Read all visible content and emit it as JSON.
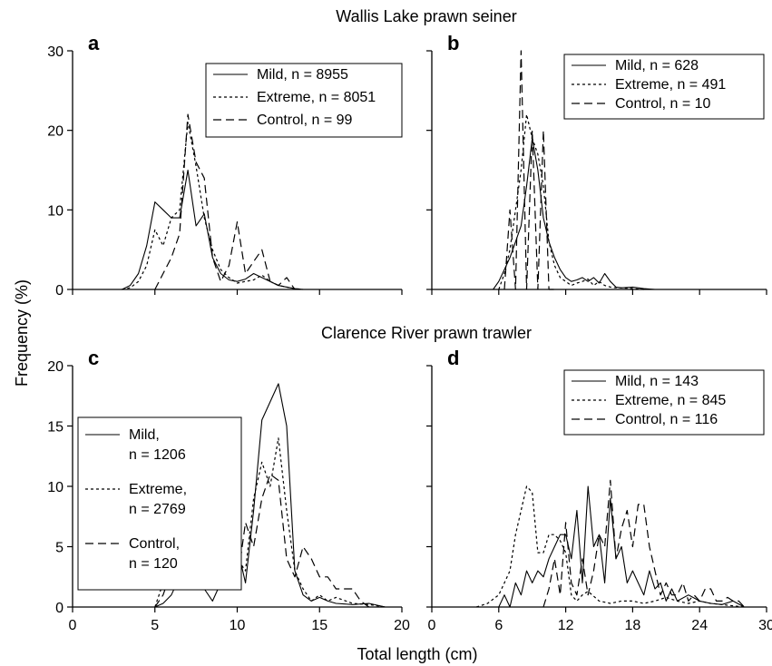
{
  "figure": {
    "row_titles": [
      "Wallis Lake prawn seiner",
      "Clarence River prawn trawler"
    ],
    "ylabel": "Frequency (%)",
    "xlabel": "Total length (cm)"
  },
  "chart_data": [
    {
      "type": "line",
      "panel": "a",
      "xlim": [
        0,
        20
      ],
      "ylim": [
        0,
        30
      ],
      "x_ticks": [],
      "y_ticks": [
        0,
        10,
        20,
        30
      ],
      "legend": {
        "position": "top-right",
        "entries": [
          "Mild, n = 8955",
          "Extreme, n = 8051",
          "Control, n = 99"
        ]
      },
      "series": [
        {
          "name": "Mild, n = 8955",
          "style": "solid",
          "x": [
            3,
            3.5,
            4,
            4.5,
            5,
            5.5,
            6,
            6.5,
            7,
            7.5,
            8,
            8.5,
            9,
            9.5,
            10,
            10.5,
            11,
            11.5,
            12,
            12.5,
            13,
            13.5,
            14
          ],
          "y": [
            0,
            0.5,
            2,
            5.5,
            11,
            10,
            9,
            9,
            15,
            8,
            9.5,
            4,
            2,
            1.2,
            1,
            1.3,
            2,
            1.5,
            1,
            0.5,
            0.3,
            0.1,
            0
          ]
        },
        {
          "name": "Extreme, n = 8051",
          "style": "dotted",
          "x": [
            3,
            3.5,
            4,
            4.5,
            5,
            5.5,
            6,
            6.5,
            7,
            7.5,
            8,
            8.5,
            9,
            9.5,
            10,
            10.5,
            11,
            11.5,
            12,
            12.5,
            13,
            13.5,
            14
          ],
          "y": [
            0,
            0.2,
            1,
            3,
            7.5,
            5.5,
            9,
            10,
            21,
            15.5,
            9,
            5,
            2.5,
            1.5,
            0.8,
            1,
            1.2,
            1.8,
            1,
            0.5,
            0.3,
            0.1,
            0
          ]
        },
        {
          "name": "Control, n = 99",
          "style": "dashed",
          "x": [
            5,
            5.5,
            6,
            6.5,
            7,
            7.5,
            8,
            8.5,
            9,
            9.5,
            10,
            10.5,
            11,
            11.5,
            12,
            12.5,
            13,
            13.5
          ],
          "y": [
            0,
            2,
            4,
            7,
            22,
            16,
            14,
            4,
            1,
            3,
            8.5,
            2,
            3.5,
            5,
            1,
            0.5,
            1.5,
            0
          ]
        }
      ]
    },
    {
      "type": "line",
      "panel": "b",
      "xlim": [
        0,
        30
      ],
      "ylim": [
        0,
        30
      ],
      "x_ticks": [],
      "y_ticks": [],
      "legend": {
        "position": "top-right",
        "entries": [
          "Mild, n = 628",
          "Extreme, n = 491",
          "Control, n = 10"
        ]
      },
      "series": [
        {
          "name": "Mild, n = 628",
          "style": "solid",
          "x": [
            5.5,
            6,
            6.5,
            7,
            7.5,
            8,
            8.5,
            9,
            9.5,
            10,
            10.5,
            11,
            11.5,
            12,
            12.5,
            13,
            13.5,
            14,
            14.5,
            15,
            15.5,
            16,
            16.5,
            17,
            18,
            19,
            20
          ],
          "y": [
            0,
            1,
            2.5,
            4,
            6,
            8,
            13,
            19,
            15,
            9,
            6,
            4,
            2.5,
            1.5,
            1,
            1.2,
            1.5,
            1,
            1.5,
            0.8,
            2,
            1,
            0.3,
            0.2,
            0.3,
            0.1,
            0
          ]
        },
        {
          "name": "Extreme, n = 491",
          "style": "dotted",
          "x": [
            6,
            6.5,
            7,
            7.5,
            8,
            8.5,
            9,
            9.5,
            10,
            10.5,
            11,
            11.5,
            12,
            12.5,
            13,
            13.5,
            14,
            14.5,
            15,
            15.5,
            16,
            16.5,
            17,
            18,
            19
          ],
          "y": [
            0,
            2,
            5,
            10,
            15,
            22,
            19,
            17,
            13,
            6,
            3,
            1.5,
            1,
            0.5,
            0.8,
            1,
            1.3,
            0.5,
            1,
            0.5,
            0.3,
            0.2,
            0.2,
            0.1,
            0
          ]
        },
        {
          "name": "Control, n = 10",
          "style": "dashed",
          "x": [
            6.5,
            7,
            7.5,
            8,
            8.5,
            9,
            9.5,
            10,
            10.5,
            11
          ],
          "y": [
            0,
            10,
            0,
            30,
            0,
            20,
            0,
            20,
            0,
            0
          ]
        }
      ]
    },
    {
      "type": "line",
      "panel": "c",
      "xlim": [
        0,
        20
      ],
      "ylim": [
        0,
        20
      ],
      "x_ticks": [
        0,
        5,
        10,
        15,
        20
      ],
      "y_ticks": [
        0,
        5,
        10,
        15,
        20
      ],
      "legend": {
        "position": "middle-left",
        "entries": [
          [
            "Mild,",
            "n = 1206"
          ],
          [
            "Extreme,",
            "n = 2769"
          ],
          [
            "Control,",
            "n = 120"
          ]
        ]
      },
      "series": [
        {
          "name": "Mild, n = 1206",
          "style": "solid",
          "x": [
            5,
            5.5,
            6,
            6.5,
            7,
            7.5,
            8,
            8.5,
            9,
            9.5,
            10,
            10.5,
            11,
            11.5,
            12,
            12.5,
            13,
            13.5,
            14,
            14.5,
            15,
            15.5,
            16,
            17,
            18,
            19
          ],
          "y": [
            0,
            0.3,
            1,
            2.5,
            1.5,
            3,
            1.5,
            0.5,
            2,
            2,
            5,
            2,
            8,
            15.5,
            17,
            18.5,
            15,
            3,
            1,
            0.5,
            0.8,
            0.5,
            0.3,
            0.2,
            0.3,
            0
          ]
        },
        {
          "name": "Extreme, n = 2769",
          "style": "dotted",
          "x": [
            5,
            5.5,
            6,
            6.5,
            7,
            7.5,
            8,
            8.5,
            9,
            9.5,
            10,
            10.5,
            11,
            11.5,
            12,
            12.5,
            13,
            13.5,
            14,
            14.5,
            15,
            15.5,
            16,
            17,
            18,
            19
          ],
          "y": [
            0,
            2,
            6,
            5.5,
            7,
            6,
            4,
            2,
            3,
            2.5,
            4,
            3,
            9,
            12,
            10,
            14,
            8,
            3,
            1.5,
            0.5,
            1,
            0.5,
            0.8,
            0.3,
            0.2,
            0
          ]
        },
        {
          "name": "Control, n = 120",
          "style": "dashed",
          "x": [
            5,
            5.5,
            6,
            6.5,
            7,
            7.5,
            8,
            8.5,
            9,
            9.5,
            10,
            10.5,
            11,
            11.5,
            12,
            12.5,
            13,
            13.5,
            14,
            14.5,
            15,
            15.5,
            16,
            16.5,
            17,
            17.5,
            18
          ],
          "y": [
            0,
            1,
            3,
            2,
            4,
            3,
            5,
            2.5,
            2.5,
            4,
            2,
            7,
            5,
            9,
            11,
            10.5,
            4,
            2.5,
            5,
            4,
            2.5,
            2.5,
            1.5,
            1.5,
            1.5,
            0.5,
            0
          ]
        }
      ]
    },
    {
      "type": "line",
      "panel": "d",
      "xlim": [
        0,
        30
      ],
      "ylim": [
        0,
        20
      ],
      "x_ticks": [
        0,
        6,
        12,
        18,
        24,
        30
      ],
      "y_ticks": [],
      "legend": {
        "position": "top-right",
        "entries": [
          "Mild, n = 143",
          "Extreme, n = 845",
          "Control, n = 116"
        ]
      },
      "series": [
        {
          "name": "Mild, n = 143",
          "style": "solid",
          "x": [
            6,
            6.5,
            7,
            7.5,
            8,
            8.5,
            9,
            9.5,
            10,
            10.5,
            11,
            11.5,
            12,
            12.5,
            13,
            13.5,
            14,
            14.5,
            15,
            15.5,
            16,
            16.5,
            17,
            17.5,
            18,
            18.5,
            19,
            19.5,
            20,
            20.5,
            21,
            21.5,
            22,
            23,
            24,
            25,
            26,
            27,
            28
          ],
          "y": [
            0,
            1,
            0,
            2,
            1,
            3,
            2,
            3,
            2.5,
            4,
            5,
            6,
            6,
            4,
            8,
            2,
            10,
            5,
            6,
            2,
            9,
            4,
            5,
            2,
            3,
            2,
            1,
            3,
            1.5,
            2,
            0.5,
            1.5,
            0.5,
            1,
            0.5,
            0.3,
            0.2,
            0.5,
            0
          ]
        },
        {
          "name": "Extreme, n = 845",
          "style": "dotted",
          "x": [
            4,
            5,
            6,
            6.5,
            7,
            7.5,
            8,
            8.5,
            9,
            9.5,
            10,
            10.5,
            11,
            11.5,
            12,
            12.5,
            13,
            13.5,
            14,
            15,
            16,
            17,
            18,
            19,
            20,
            21,
            22,
            23,
            24,
            25,
            26,
            27,
            28
          ],
          "y": [
            0,
            0.3,
            1,
            2,
            3,
            6,
            8,
            10,
            9.5,
            4.5,
            4.5,
            6,
            6,
            5.5,
            4.5,
            1,
            0.5,
            1,
            1.3,
            0.5,
            0.3,
            0.5,
            0.5,
            0.3,
            0.5,
            0.8,
            0.5,
            0.3,
            0.5,
            0.3,
            0.2,
            0.1,
            0
          ]
        },
        {
          "name": "Control, n = 116",
          "style": "dashed",
          "x": [
            10,
            10.5,
            11,
            11.5,
            12,
            12.5,
            13,
            13.5,
            14,
            14.5,
            15,
            15.5,
            16,
            16.5,
            17,
            17.5,
            18,
            18.5,
            19,
            19.5,
            20,
            20.5,
            21,
            21.5,
            22,
            22.5,
            23,
            23.5,
            24,
            24.5,
            25,
            25.5,
            26,
            26.5,
            27,
            27.5,
            28
          ],
          "y": [
            0,
            1.5,
            4,
            1,
            7,
            2,
            1,
            4,
            1,
            3,
            6,
            5,
            10.5,
            4,
            6.5,
            8,
            5,
            8.5,
            8.5,
            5,
            3,
            1,
            2,
            1,
            1,
            2,
            0.5,
            1,
            0.5,
            1.5,
            1.5,
            0.5,
            0.5,
            0.8,
            0.5,
            0.5,
            0
          ]
        }
      ]
    }
  ]
}
